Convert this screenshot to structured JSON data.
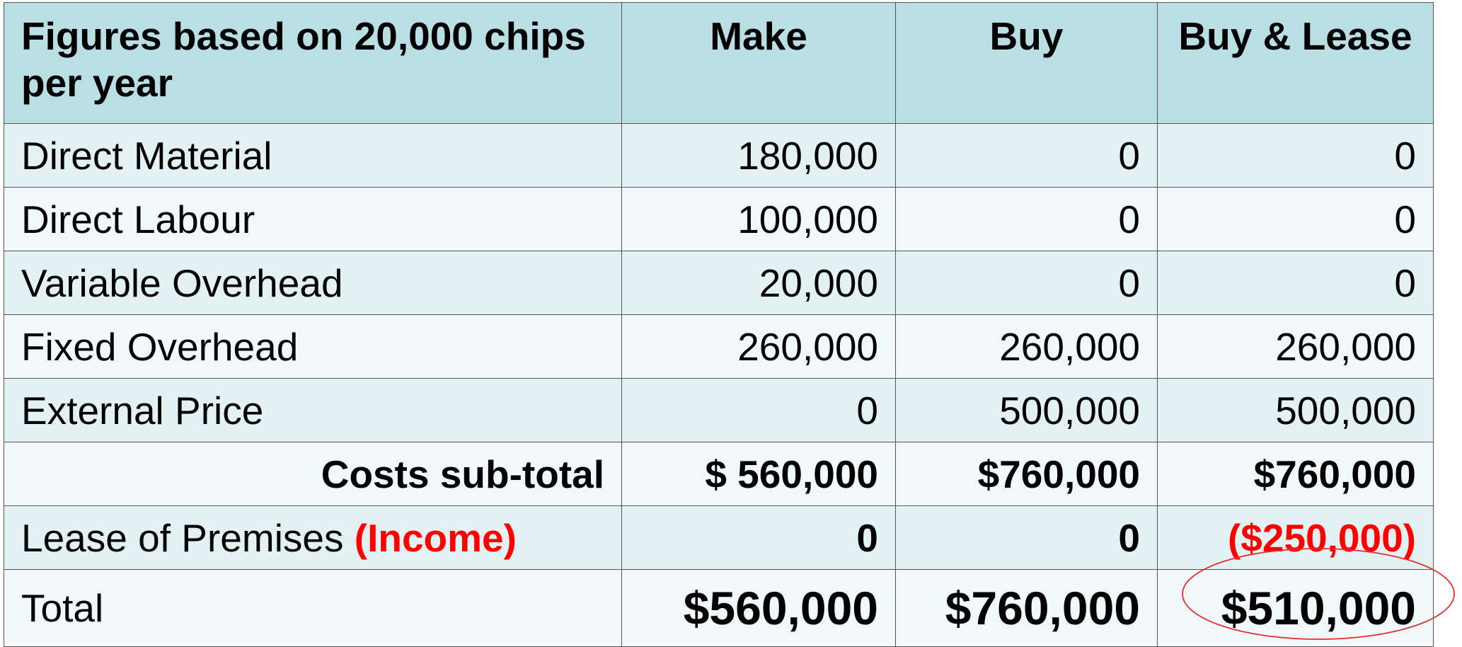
{
  "table": {
    "headers": [
      "Figures based on 20,000 chips per year",
      "Make",
      "Buy",
      "Buy & Lease"
    ],
    "rows": [
      {
        "label": "Direct Material",
        "make": "180,000",
        "buy": "0",
        "buy_lease": "0"
      },
      {
        "label": "Direct Labour",
        "make": "100,000",
        "buy": "0",
        "buy_lease": "0"
      },
      {
        "label": "Variable Overhead",
        "make": "20,000",
        "buy": "0",
        "buy_lease": "0"
      },
      {
        "label": "Fixed Overhead",
        "make": "260,000",
        "buy": "260,000",
        "buy_lease": "260,000"
      },
      {
        "label": "External Price",
        "make": "0",
        "buy": "500,000",
        "buy_lease": "500,000"
      }
    ],
    "subtotal": {
      "label": "Costs sub-total",
      "make": "$ 560,000",
      "buy": "$760,000",
      "buy_lease": "$760,000"
    },
    "lease": {
      "label": "Lease of Premises",
      "income_label": "(Income)",
      "make": "0",
      "buy": "0",
      "buy_lease": "($250,000)"
    },
    "total": {
      "label": "Total",
      "make": "$560,000",
      "buy": "$760,000",
      "buy_lease": "$510,000"
    }
  },
  "colors": {
    "header_bg": "#b9dfe4",
    "row_bg_a": "#e4f1f3",
    "row_bg_b": "#f1f8f9",
    "highlight_red": "#ff0000",
    "ellipse_stroke": "#e03030"
  }
}
